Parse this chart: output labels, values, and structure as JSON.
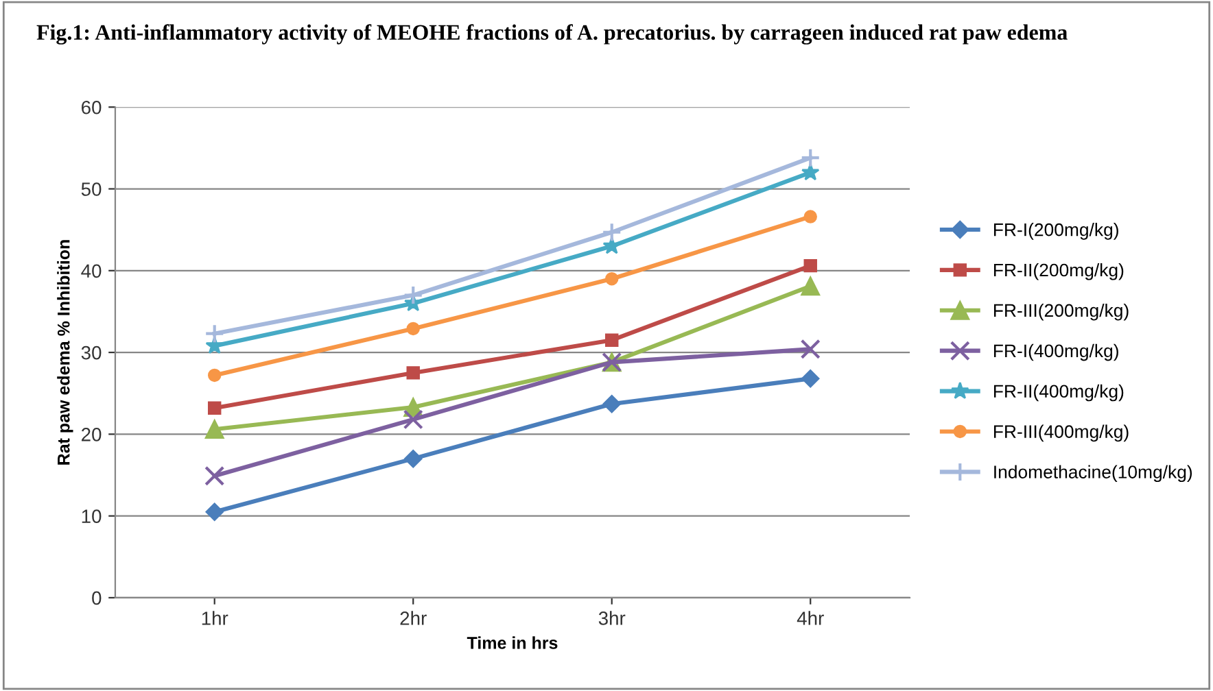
{
  "chart_data": {
    "type": "line",
    "title": "Fig.1: Anti-inflammatory activity of MEOHE fractions of A. precatorius. by carrageen induced rat paw edema",
    "xlabel": "Time in hrs",
    "ylabel": "Rat paw edema % Inhibition",
    "categories": [
      "1hr",
      "2hr",
      "3hr",
      "4hr"
    ],
    "series": [
      {
        "name": "FR-I(200mg/kg)",
        "color": "#4a7ebb",
        "marker": "diamond",
        "values": [
          10.5,
          17,
          23.7,
          26.8
        ]
      },
      {
        "name": "FR-II(200mg/kg)",
        "color": "#be4b48",
        "marker": "square",
        "values": [
          23.2,
          27.5,
          31.5,
          40.6
        ]
      },
      {
        "name": "FR-III(200mg/kg)",
        "color": "#98b954",
        "marker": "triangle",
        "values": [
          20.6,
          23.3,
          28.8,
          38.1
        ]
      },
      {
        "name": "FR-I(400mg/kg)",
        "color": "#7d60a0",
        "marker": "cross",
        "values": [
          14.9,
          21.8,
          28.8,
          30.4
        ]
      },
      {
        "name": "FR-II(400mg/kg)",
        "color": "#46aac5",
        "marker": "star",
        "values": [
          30.8,
          36,
          43,
          52
        ]
      },
      {
        "name": "FR-III(400mg/kg)",
        "color": "#f79646",
        "marker": "circle",
        "values": [
          27.2,
          32.9,
          39,
          46.6
        ]
      },
      {
        "name": "Indomethacine(10mg/kg)",
        "color": "#a5b8dc",
        "marker": "plus",
        "values": [
          32.3,
          37,
          44.7,
          53.8
        ]
      }
    ],
    "ylim": [
      0,
      60
    ],
    "yticks": [
      0,
      10,
      20,
      30,
      40,
      50,
      60
    ],
    "grid": "y",
    "legend": "right",
    "line_style": "solid"
  }
}
